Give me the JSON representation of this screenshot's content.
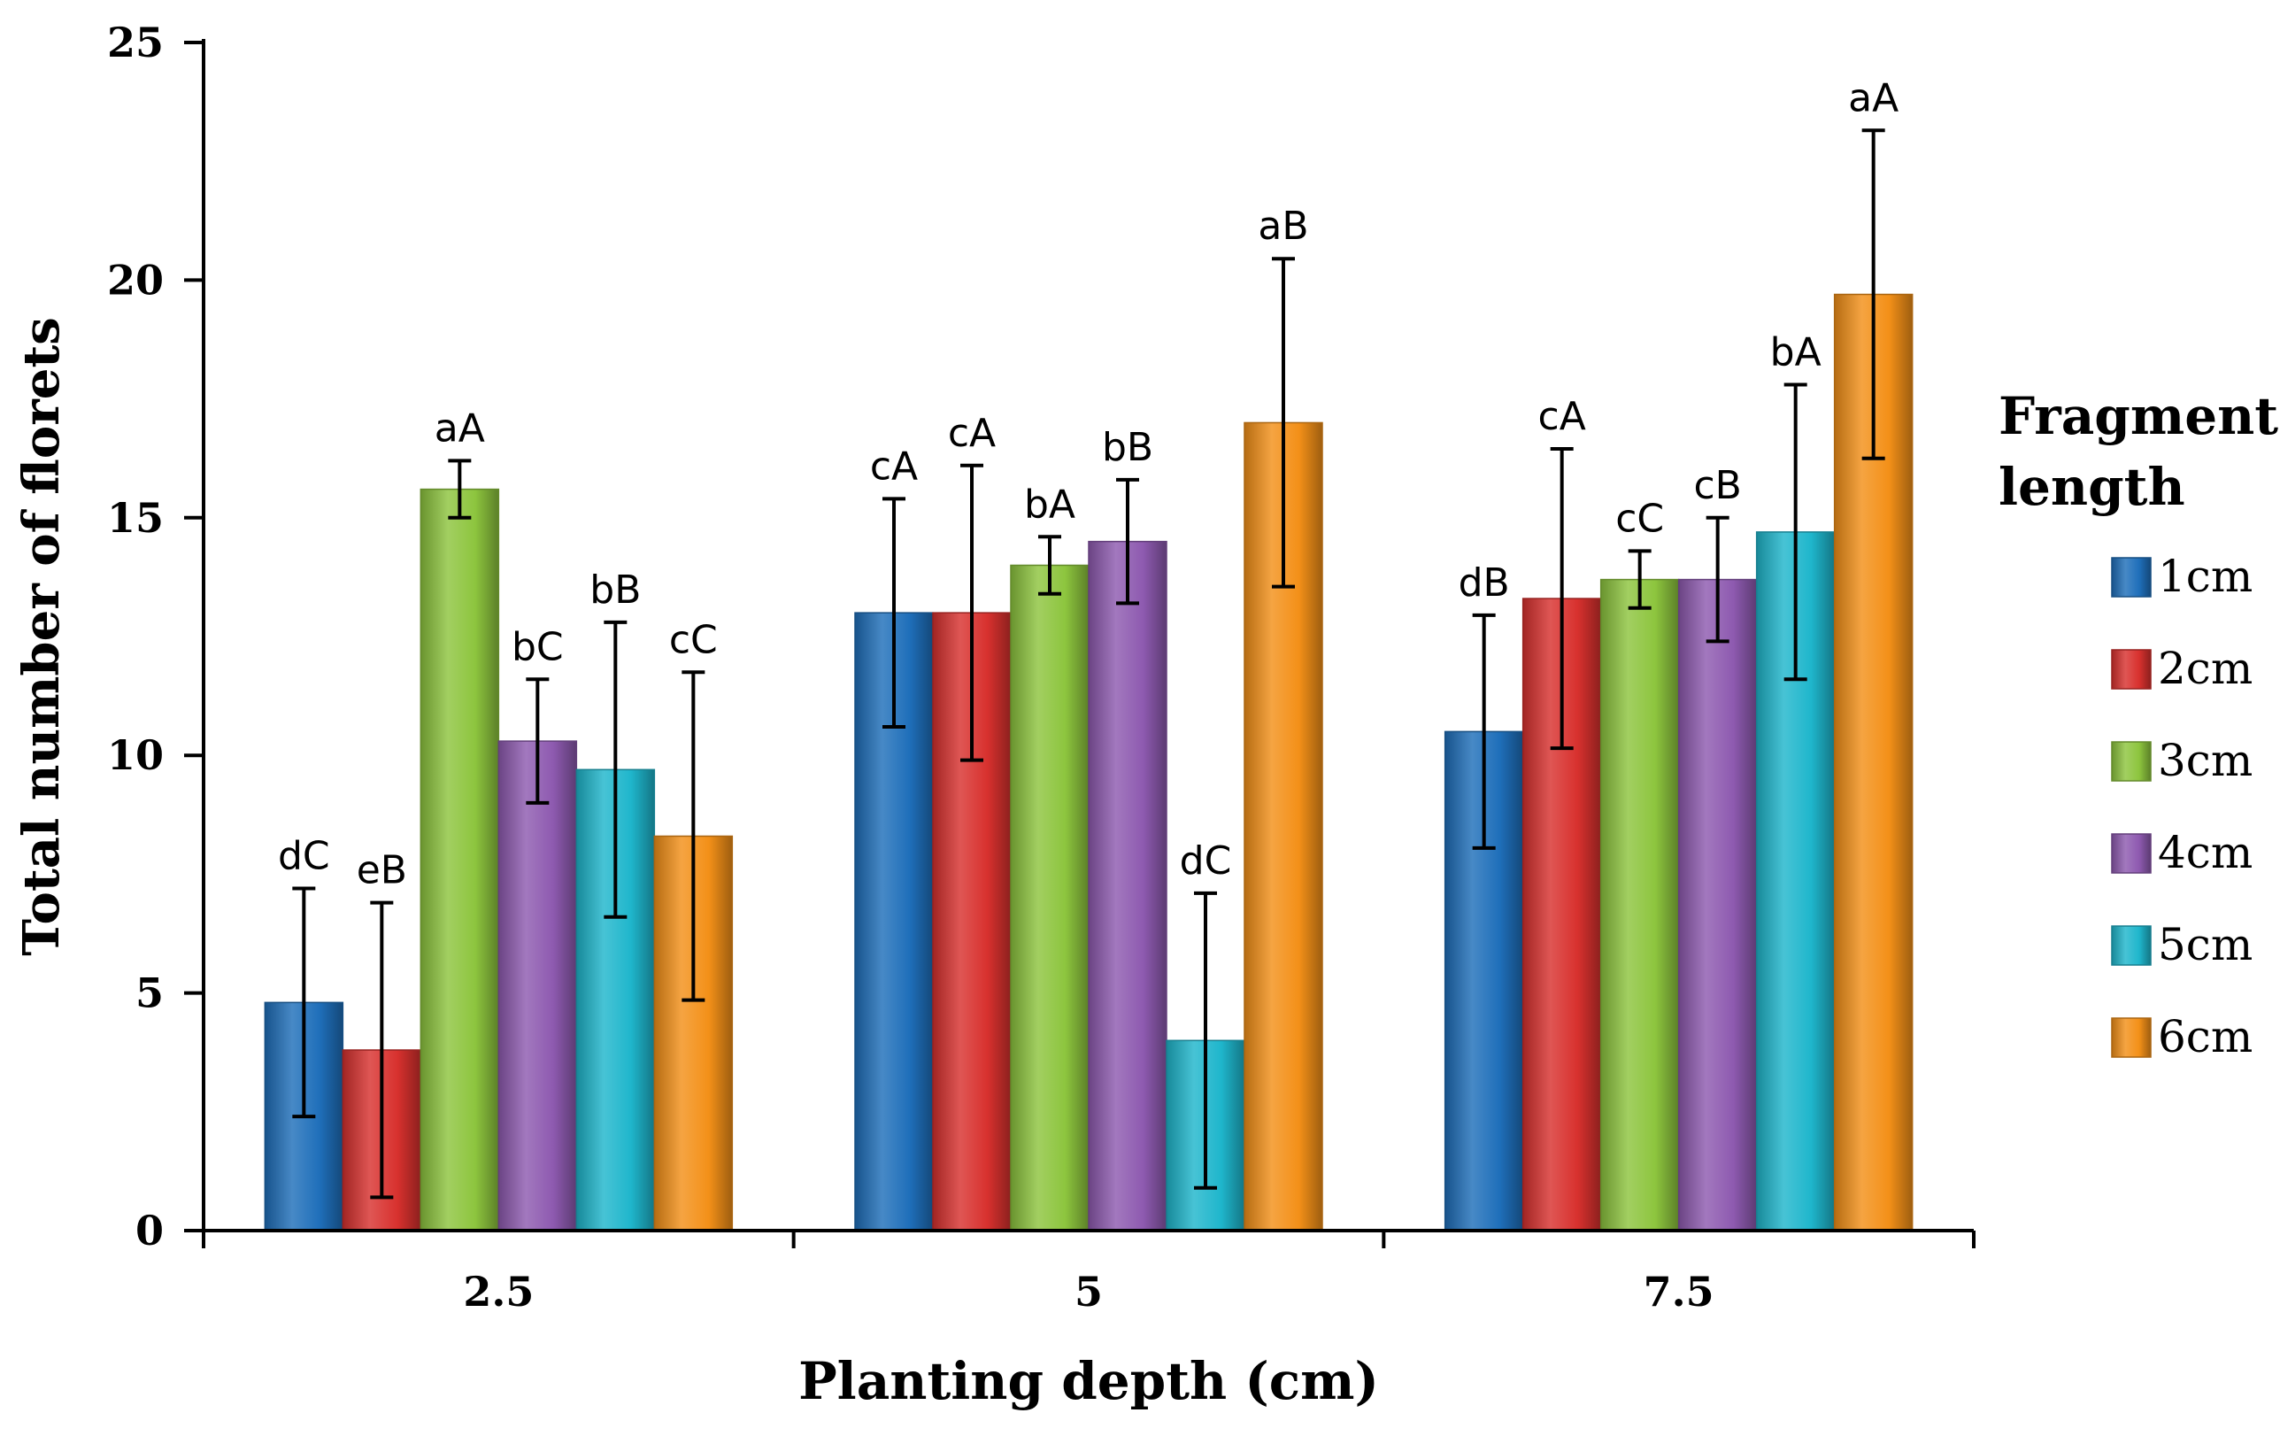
{
  "chart_data": {
    "type": "bar",
    "title": "",
    "xlabel": "Planting depth (cm)",
    "ylabel": "Total number of florets",
    "ylim": [
      0,
      25
    ],
    "yticks": [
      "0",
      "5",
      "10",
      "15",
      "20",
      "25"
    ],
    "categories": [
      "2.5",
      "5",
      "7.5"
    ],
    "legend_title": [
      "Fragment",
      "length"
    ],
    "legend_position": "right",
    "series": [
      {
        "name": "1cm",
        "color": "#1f6fba",
        "values": [
          4.8,
          13.0,
          10.5
        ],
        "errors": [
          2.4,
          2.4,
          2.45
        ],
        "labels": [
          "dC",
          "cA",
          "dB"
        ]
      },
      {
        "name": "2cm",
        "color": "#d8312e",
        "values": [
          3.8,
          13.0,
          13.3
        ],
        "errors": [
          3.1,
          3.1,
          3.15
        ],
        "labels": [
          "eB",
          "cA",
          "cA"
        ]
      },
      {
        "name": "3cm",
        "color": "#8dc53e",
        "values": [
          15.6,
          14.0,
          13.7
        ],
        "errors": [
          0.6,
          0.6,
          0.6
        ],
        "labels": [
          "aA",
          "bA",
          "cC"
        ]
      },
      {
        "name": "4cm",
        "color": "#8e5ab0",
        "values": [
          10.3,
          14.5,
          13.7
        ],
        "errors": [
          1.3,
          1.3,
          1.3
        ],
        "labels": [
          "bC",
          "bB",
          "cB"
        ]
      },
      {
        "name": "5cm",
        "color": "#1fb6cc",
        "values": [
          9.7,
          4.0,
          14.7
        ],
        "errors": [
          3.1,
          3.1,
          3.1
        ],
        "labels": [
          "bB",
          "dC",
          "bA"
        ]
      },
      {
        "name": "6cm",
        "color": "#f39018",
        "values": [
          8.3,
          17.0,
          19.7
        ],
        "errors": [
          3.45,
          3.45,
          3.45
        ],
        "labels": [
          "cC",
          "aB",
          "aA"
        ]
      }
    ]
  }
}
